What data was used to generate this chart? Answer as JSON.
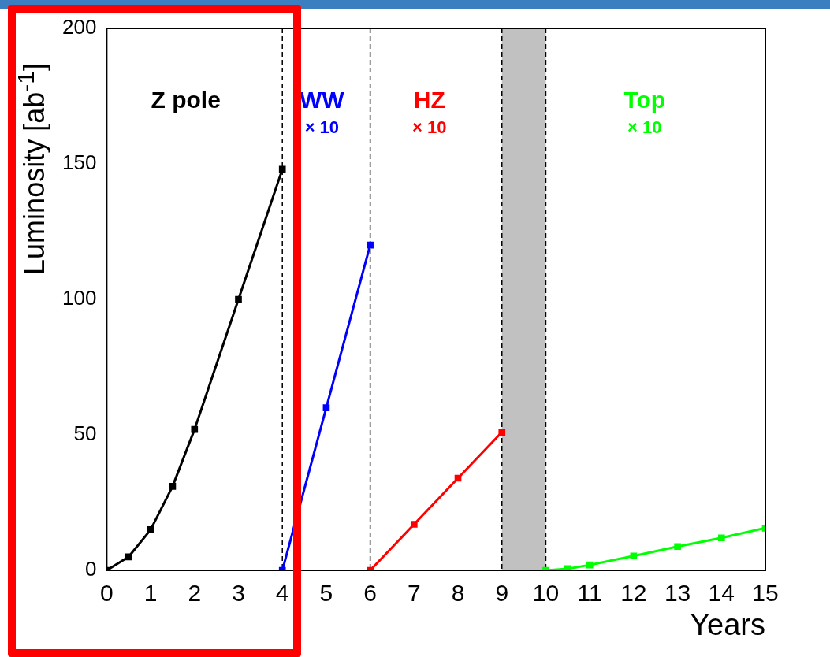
{
  "chart_data": {
    "type": "line",
    "xlabel": "Years",
    "ylabel": "Luminosity [ab$^{-1}$]",
    "xlim": [
      0,
      15
    ],
    "xticks": [
      0,
      1,
      2,
      3,
      4,
      5,
      6,
      7,
      8,
      9,
      10,
      11,
      12,
      13,
      14,
      15
    ],
    "ylim": [
      0,
      200
    ],
    "yticks": [
      0,
      50,
      100,
      150,
      200
    ],
    "series": [
      {
        "name": "Z pole",
        "color": "#000000",
        "x": [
          0,
          0.5,
          1,
          1.5,
          2,
          3,
          4
        ],
        "values": [
          0,
          5,
          15,
          31,
          52,
          100,
          148
        ]
      },
      {
        "name": "WW",
        "color": "#0000ff",
        "x": [
          4,
          5,
          6
        ],
        "values": [
          0,
          60,
          120
        ]
      },
      {
        "name": "HZ",
        "color": "#ff0000",
        "x": [
          6,
          7,
          8,
          9
        ],
        "values": [
          0,
          17,
          34,
          51
        ]
      },
      {
        "name": "Top",
        "color": "#00ff00",
        "x": [
          10,
          10.5,
          11,
          12,
          13,
          14,
          15
        ],
        "values": [
          0,
          0.6,
          2,
          5.3,
          8.8,
          12,
          15.6
        ]
      }
    ],
    "annotations": [
      "× 10",
      "× 10",
      "× 10"
    ],
    "ref_lines": [
      {
        "axis": "x",
        "value": 4,
        "line_style": "dashed"
      },
      {
        "axis": "x",
        "value": 6,
        "line_style": "dashed"
      },
      {
        "axis": "x",
        "value": 9,
        "line_style": "dashed"
      },
      {
        "axis": "x",
        "value": 10,
        "line_style": "dashed"
      }
    ],
    "bands": [
      {
        "axis": "x",
        "from": 9,
        "to": 10,
        "color": "#333333"
      }
    ],
    "grid": false,
    "legend": false,
    "marker": "square",
    "line_style": "solid"
  }
}
